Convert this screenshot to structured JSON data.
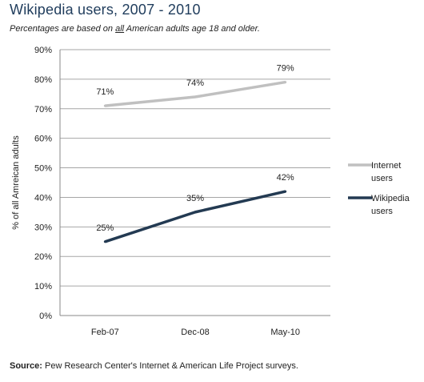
{
  "title": "Wikipedia users, 2007 - 2010",
  "subtitle": {
    "before": "Percentages are based on ",
    "emph": "all",
    "after": " American adults age 18 and older."
  },
  "source": {
    "label": "Source:",
    "text": " Pew Research Center's Internet & American Life Project surveys."
  },
  "colors": {
    "internet": "#c0c0c0",
    "wikipedia": "#233a52",
    "grid": "#a6a6a6",
    "axis": "#888888"
  },
  "chart_data": {
    "type": "line",
    "categories": [
      "Feb-07",
      "Dec-08",
      "May-10"
    ],
    "series": [
      {
        "name": "Internet users",
        "values": [
          71,
          74,
          79
        ],
        "labels": [
          "71%",
          "74%",
          "79%"
        ]
      },
      {
        "name": "Wikipedia users",
        "values": [
          25,
          35,
          42
        ],
        "labels": [
          "25%",
          "35%",
          "42%"
        ]
      }
    ],
    "ylabel": "% of all Amreican adults",
    "ylim": [
      0,
      90
    ],
    "yticks": [
      0,
      10,
      20,
      30,
      40,
      50,
      60,
      70,
      80,
      90
    ],
    "ytick_labels": [
      "0%",
      "10%",
      "20%",
      "30%",
      "40%",
      "50%",
      "60%",
      "70%",
      "80%",
      "90%"
    ],
    "grid": true,
    "legend": "right"
  }
}
